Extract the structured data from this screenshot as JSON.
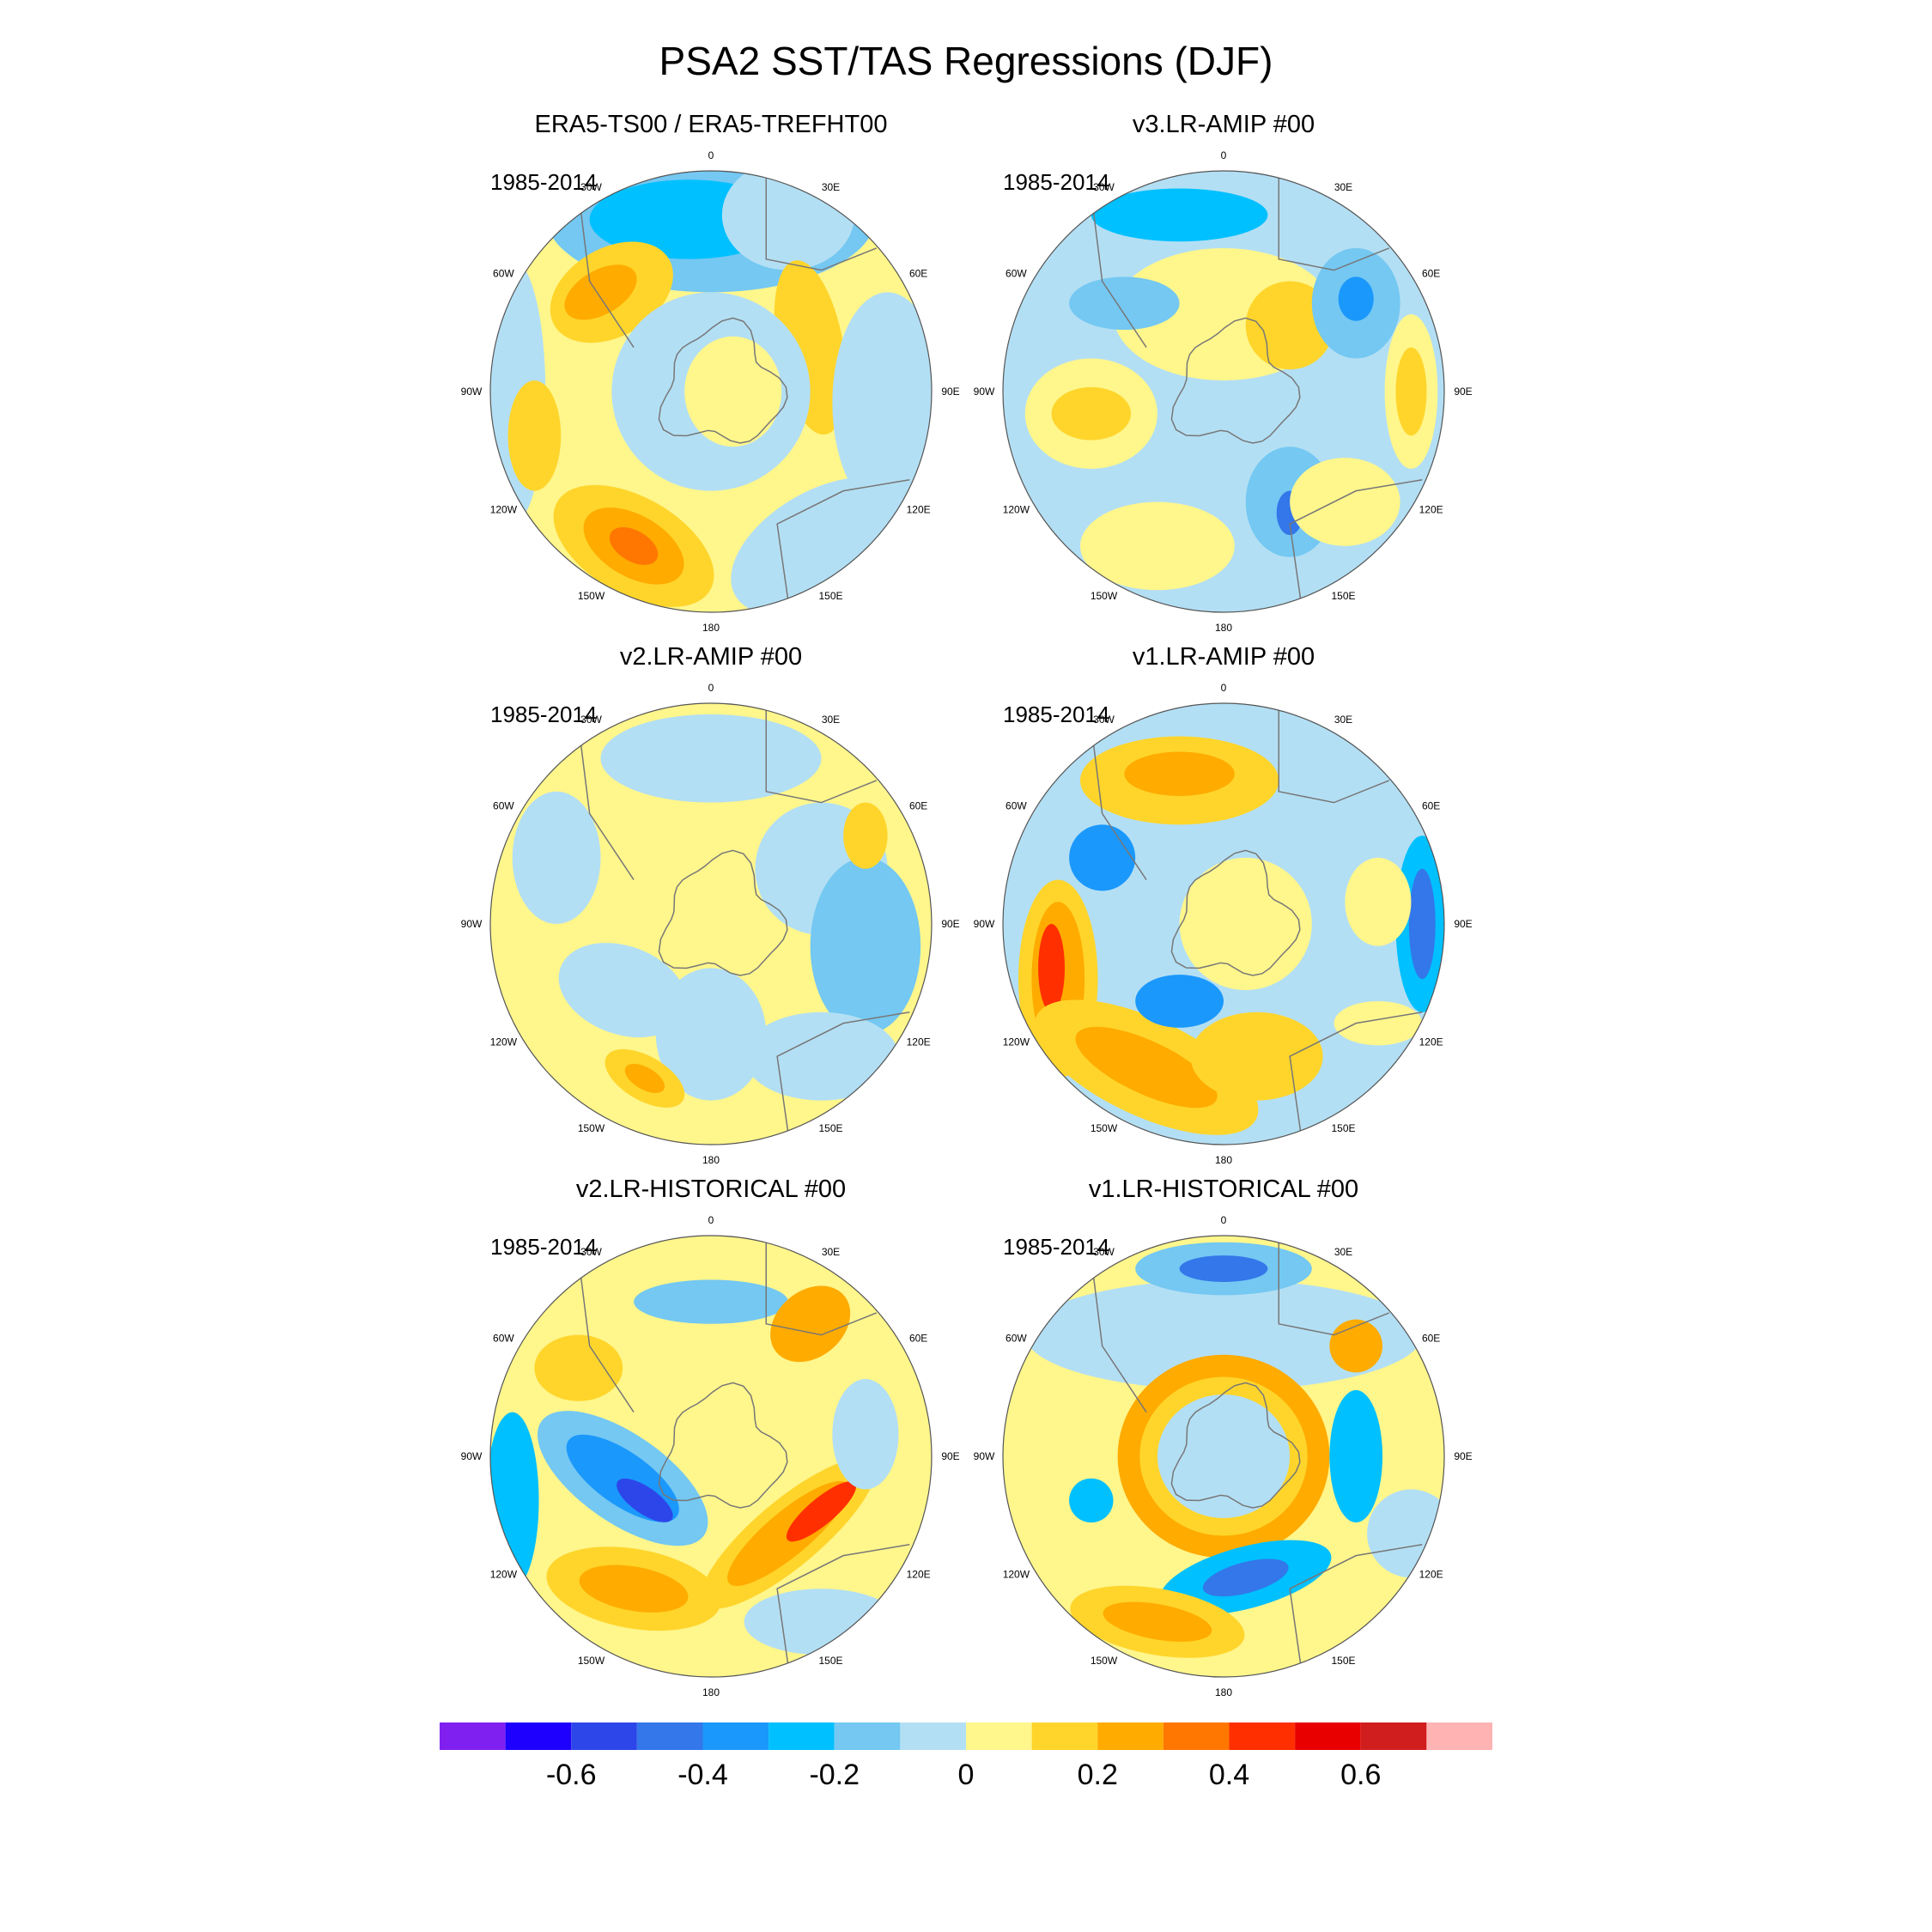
{
  "title": "PSA2 SST/TAS Regressions (DJF)",
  "panels": [
    {
      "title": "ERA5-TS00 / ERA5-TREFHT00",
      "period": "1985-2014"
    },
    {
      "title": "v3.LR-AMIP  #00",
      "period": "1985-2014"
    },
    {
      "title": "v2.LR-AMIP  #00",
      "period": "1985-2014"
    },
    {
      "title": "v1.LR-AMIP  #00",
      "period": "1985-2014"
    },
    {
      "title": "v2.LR-HISTORICAL  #00",
      "period": "1985-2014"
    },
    {
      "title": "v1.LR-HISTORICAL  #00",
      "period": "1985-2014"
    }
  ],
  "lon_labels": [
    "0",
    "30E",
    "60E",
    "90E",
    "120E",
    "150E",
    "180",
    "150W",
    "120W",
    "90W",
    "60W",
    "30W"
  ],
  "chart_data": {
    "type": "heatmap",
    "projection": "south polar stereographic",
    "colorbar": {
      "levels": [
        -0.7,
        -0.6,
        -0.5,
        -0.4,
        -0.3,
        -0.2,
        -0.1,
        0,
        0.1,
        0.2,
        0.3,
        0.4,
        0.5,
        0.6,
        0.7
      ],
      "colors": [
        "#8020f0",
        "#1e00ff",
        "#2d46ea",
        "#3377ea",
        "#1b98fc",
        "#00c0ff",
        "#74c8f2",
        "#b3dff4",
        "#fff68c",
        "#ffd52b",
        "#ffab00",
        "#ff7700",
        "#ff2f00",
        "#e80000",
        "#d01e1e",
        "#ffb3b3"
      ],
      "tick_labels": [
        "-0.6",
        "-0.4",
        "-0.2",
        "0",
        "0.2",
        "0.4",
        "0.6"
      ],
      "tick_values": [
        -0.6,
        -0.4,
        -0.2,
        0,
        0.2,
        0.4,
        0.6
      ]
    }
  }
}
